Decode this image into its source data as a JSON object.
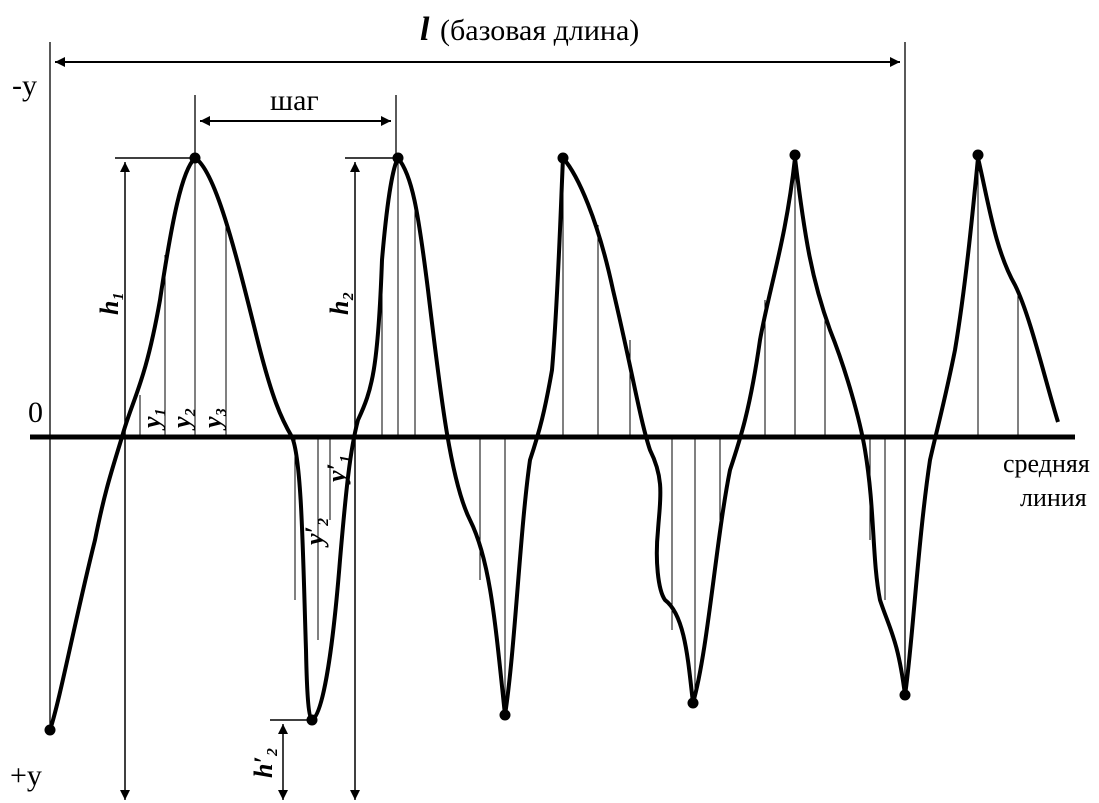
{
  "labels": {
    "base_length_symbol": "l",
    "base_length_text": "(базовая длина)",
    "step": "шаг",
    "neg_y": "-y",
    "pos_y": "+y",
    "zero": "0",
    "mean_line_1": "средняя",
    "mean_line_2": "линия",
    "h1": "h₁",
    "h2": "h₂",
    "h2_prime": "h′₂",
    "y1": "y₁",
    "y2": "y₂",
    "y3": "y₃",
    "y1_prime": "y′₁",
    "y2_prime": "y′₂"
  },
  "colors": {
    "ink": "#000000",
    "background": "#ffffff"
  }
}
